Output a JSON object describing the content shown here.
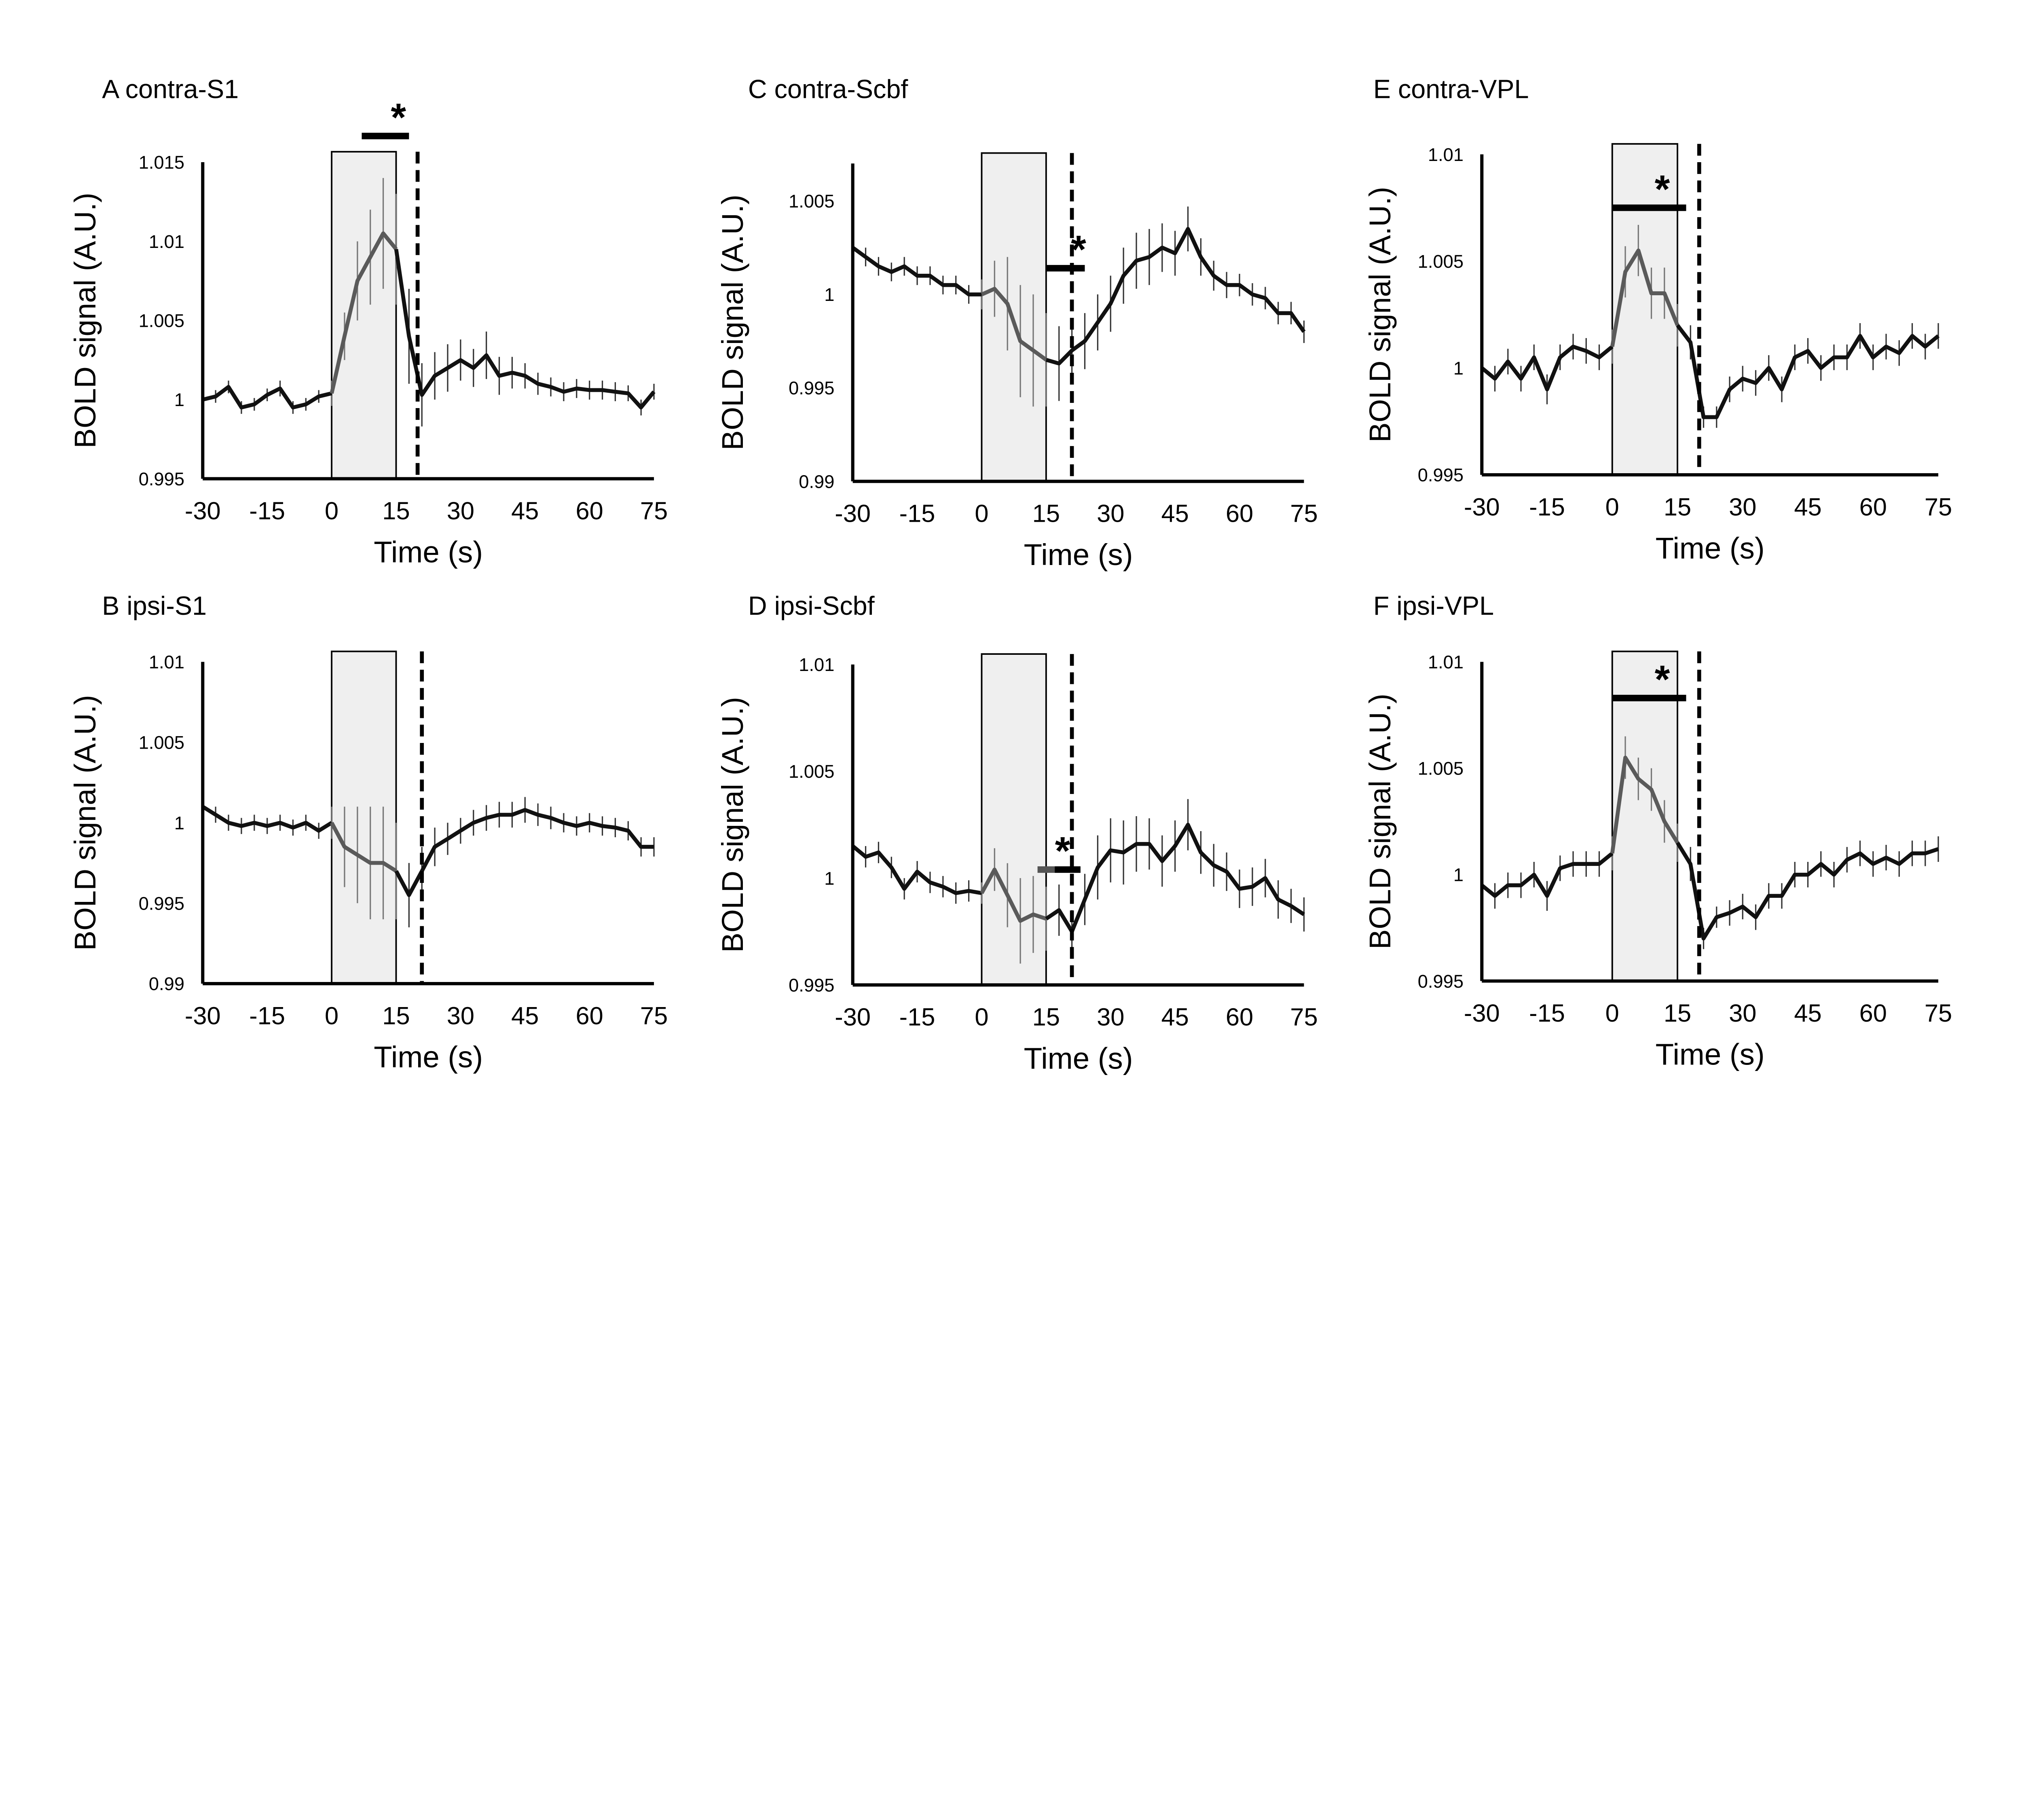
{
  "chart_data": [
    {
      "type": "line",
      "panel": "A",
      "title": "A contra-S1",
      "xlabel": "Time (s)",
      "ylabel": "BOLD signal (A.U.)",
      "xlim": [
        -30,
        75
      ],
      "ylim": [
        0.995,
        1.015
      ],
      "xticks": [
        "-30",
        "-15",
        "0",
        "15",
        "30",
        "45",
        "60",
        "75"
      ],
      "yticks": [
        "0.995",
        "1",
        "1.005",
        "1.01",
        "1.015"
      ],
      "stimulus_window": [
        0,
        15
      ],
      "dashed_line_x": 20,
      "significance": {
        "segments": [
          {
            "from": 7,
            "to": 18,
            "color": "#000000"
          }
        ],
        "y": "above",
        "label": "*"
      },
      "x": [
        -30,
        -27,
        -24,
        -21,
        -18,
        -15,
        -12,
        -9,
        -6,
        -3,
        0,
        3,
        6,
        9,
        12,
        15,
        18,
        21,
        24,
        27,
        30,
        33,
        36,
        39,
        42,
        45,
        48,
        51,
        54,
        57,
        60,
        63,
        66,
        69,
        72,
        75
      ],
      "y": [
        1.0,
        1.0002,
        1.0008,
        0.9995,
        0.9997,
        1.0003,
        1.0007,
        0.9995,
        0.9997,
        1.0002,
        1.0004,
        1.004,
        1.0075,
        1.009,
        1.0105,
        1.0095,
        1.004,
        1.0003,
        1.0015,
        1.002,
        1.0025,
        1.002,
        1.0028,
        1.0015,
        1.0017,
        1.0015,
        1.001,
        1.0008,
        1.0005,
        1.0007,
        1.0006,
        1.0006,
        1.0005,
        1.0004,
        0.9995,
        1.0005
      ],
      "error": [
        0.0004,
        0.0004,
        0.0004,
        0.0004,
        0.0004,
        0.0004,
        0.0005,
        0.0004,
        0.0004,
        0.0004,
        0.0008,
        0.0015,
        0.0025,
        0.003,
        0.0035,
        0.0035,
        0.003,
        0.002,
        0.0015,
        0.0015,
        0.0013,
        0.0012,
        0.0015,
        0.0012,
        0.001,
        0.0008,
        0.0007,
        0.0006,
        0.0006,
        0.0006,
        0.0006,
        0.0006,
        0.0006,
        0.0005,
        0.0005,
        0.0005
      ]
    },
    {
      "type": "line",
      "panel": "B",
      "title": "B ipsi-S1",
      "xlabel": "Time (s)",
      "ylabel": "BOLD signal (A.U.)",
      "xlim": [
        -30,
        75
      ],
      "ylim": [
        0.99,
        1.01
      ],
      "xticks": [
        "-30",
        "-15",
        "0",
        "15",
        "30",
        "45",
        "60",
        "75"
      ],
      "yticks": [
        "0.99",
        "0.995",
        "1",
        "1.005",
        "1.01"
      ],
      "stimulus_window": [
        0,
        15
      ],
      "dashed_line_x": 21,
      "significance": null,
      "x": [
        -30,
        -27,
        -24,
        -21,
        -18,
        -15,
        -12,
        -9,
        -6,
        -3,
        0,
        3,
        6,
        9,
        12,
        15,
        18,
        21,
        24,
        27,
        30,
        33,
        36,
        39,
        42,
        45,
        48,
        51,
        54,
        57,
        60,
        63,
        66,
        69,
        72,
        75
      ],
      "y": [
        1.001,
        1.0005,
        1.0,
        0.9998,
        1.0,
        0.9998,
        1.0,
        0.9997,
        1.0,
        0.9995,
        1.0,
        0.9985,
        0.998,
        0.9975,
        0.9975,
        0.997,
        0.9955,
        0.997,
        0.9985,
        0.999,
        0.9995,
        1.0,
        1.0003,
        1.0005,
        1.0005,
        1.0008,
        1.0005,
        1.0003,
        1.0,
        0.9998,
        1.0,
        0.9998,
        0.9997,
        0.9995,
        0.9985,
        0.9985
      ],
      "error": [
        0.0006,
        0.0005,
        0.0005,
        0.0005,
        0.0005,
        0.0005,
        0.0005,
        0.0005,
        0.0005,
        0.0005,
        0.001,
        0.0025,
        0.003,
        0.0035,
        0.0035,
        0.003,
        0.002,
        0.0015,
        0.0012,
        0.001,
        0.0008,
        0.0008,
        0.0008,
        0.0008,
        0.0008,
        0.0008,
        0.0007,
        0.0007,
        0.0006,
        0.0006,
        0.0006,
        0.0006,
        0.0006,
        0.0006,
        0.0006,
        0.0006
      ]
    },
    {
      "type": "line",
      "panel": "C",
      "title": "C contra-Scbf",
      "xlabel": "Time (s)",
      "ylabel": "BOLD signal (A.U.)",
      "xlim": [
        -30,
        75
      ],
      "ylim": [
        0.99,
        1.007
      ],
      "xticks": [
        "-30",
        "-15",
        "0",
        "15",
        "30",
        "45",
        "60",
        "75"
      ],
      "yticks": [
        "0.99",
        "0.995",
        "1",
        "1.005"
      ],
      "stimulus_window": [
        0,
        15
      ],
      "dashed_line_x": 21,
      "significance": {
        "segments": [
          {
            "from": 15,
            "to": 24,
            "color": "#000000"
          }
        ],
        "y": 1.0014,
        "label": "*"
      },
      "x": [
        -30,
        -27,
        -24,
        -21,
        -18,
        -15,
        -12,
        -9,
        -6,
        -3,
        0,
        3,
        6,
        9,
        12,
        15,
        18,
        21,
        24,
        27,
        30,
        33,
        36,
        39,
        42,
        45,
        48,
        51,
        54,
        57,
        60,
        63,
        66,
        69,
        72,
        75
      ],
      "y": [
        1.0025,
        1.002,
        1.0015,
        1.0012,
        1.0015,
        1.001,
        1.001,
        1.0005,
        1.0005,
        1.0,
        1.0,
        1.0003,
        0.9995,
        0.9975,
        0.997,
        0.9965,
        0.9963,
        0.997,
        0.9975,
        0.9985,
        0.9995,
        1.001,
        1.0018,
        1.002,
        1.0025,
        1.0022,
        1.0035,
        1.002,
        1.001,
        1.0005,
        1.0005,
        1.0,
        0.9998,
        0.999,
        0.999,
        0.998
      ],
      "error": [
        0.0005,
        0.0005,
        0.0005,
        0.0005,
        0.0005,
        0.0005,
        0.0005,
        0.0005,
        0.0005,
        0.0005,
        0.0008,
        0.0015,
        0.0025,
        0.003,
        0.003,
        0.0025,
        0.002,
        0.0015,
        0.0015,
        0.0015,
        0.0015,
        0.0015,
        0.0015,
        0.0015,
        0.0013,
        0.0012,
        0.0012,
        0.001,
        0.0008,
        0.0007,
        0.0006,
        0.0006,
        0.0006,
        0.0006,
        0.0006,
        0.0006
      ]
    },
    {
      "type": "line",
      "panel": "D",
      "title": "D ipsi-Scbf",
      "xlabel": "Time (s)",
      "ylabel": "BOLD signal (A.U.)",
      "xlim": [
        -30,
        75
      ],
      "ylim": [
        0.995,
        1.01
      ],
      "xticks": [
        "-30",
        "-15",
        "0",
        "15",
        "30",
        "45",
        "60",
        "75"
      ],
      "yticks": [
        "0.995",
        "1",
        "1.005",
        "1.01"
      ],
      "stimulus_window": [
        0,
        15
      ],
      "dashed_line_x": 21,
      "significance": {
        "segments": [
          {
            "from": 13,
            "to": 17,
            "color": "#555555"
          },
          {
            "from": 17,
            "to": 23,
            "color": "#000000"
          }
        ],
        "y": 1.0004,
        "label": "*"
      },
      "x": [
        -30,
        -27,
        -24,
        -21,
        -18,
        -15,
        -12,
        -9,
        -6,
        -3,
        0,
        3,
        6,
        9,
        12,
        15,
        18,
        21,
        24,
        27,
        30,
        33,
        36,
        39,
        42,
        45,
        48,
        51,
        54,
        57,
        60,
        63,
        66,
        69,
        72,
        75
      ],
      "y": [
        1.0015,
        1.001,
        1.0012,
        1.0005,
        0.9995,
        1.0003,
        0.9998,
        0.9996,
        0.9993,
        0.9994,
        0.9993,
        1.0004,
        0.9992,
        0.998,
        0.9983,
        0.9981,
        0.9985,
        0.9975,
        0.999,
        1.0005,
        1.0013,
        1.0012,
        1.0016,
        1.0016,
        1.0008,
        1.0015,
        1.0025,
        1.0012,
        1.0006,
        1.0003,
        0.9995,
        0.9996,
        1.0,
        0.999,
        0.9987,
        0.9983
      ],
      "error": [
        0.0006,
        0.0005,
        0.0005,
        0.0005,
        0.0005,
        0.0005,
        0.0005,
        0.0005,
        0.0005,
        0.0005,
        0.0005,
        0.001,
        0.0015,
        0.002,
        0.0018,
        0.0015,
        0.0012,
        0.001,
        0.0012,
        0.0015,
        0.0015,
        0.0015,
        0.0013,
        0.0012,
        0.0012,
        0.0012,
        0.0012,
        0.001,
        0.001,
        0.0009,
        0.0009,
        0.0009,
        0.0009,
        0.0009,
        0.0008,
        0.0008
      ]
    },
    {
      "type": "line",
      "panel": "E",
      "title": "E contra-VPL",
      "xlabel": "Time (s)",
      "ylabel": "BOLD signal (A.U.)",
      "xlim": [
        -30,
        75
      ],
      "ylim": [
        0.995,
        1.01
      ],
      "xticks": [
        "-30",
        "-15",
        "0",
        "15",
        "30",
        "45",
        "60",
        "75"
      ],
      "yticks": [
        "0.995",
        "1",
        "1.005",
        "1.01"
      ],
      "stimulus_window": [
        0,
        15
      ],
      "dashed_line_x": 20,
      "significance": {
        "segments": [
          {
            "from": 0,
            "to": 17,
            "color": "#000000"
          }
        ],
        "y": 1.0075,
        "label": "*"
      },
      "x": [
        -30,
        -27,
        -24,
        -21,
        -18,
        -15,
        -12,
        -9,
        -6,
        -3,
        0,
        3,
        6,
        9,
        12,
        15,
        18,
        21,
        24,
        27,
        30,
        33,
        36,
        39,
        42,
        45,
        48,
        51,
        54,
        57,
        60,
        63,
        66,
        69,
        72,
        75
      ],
      "y": [
        1.0,
        0.9995,
        1.0003,
        0.9995,
        1.0005,
        0.999,
        1.0005,
        1.001,
        1.0008,
        1.0005,
        1.001,
        1.0045,
        1.0055,
        1.0035,
        1.0035,
        1.002,
        1.0012,
        0.9977,
        0.9977,
        0.999,
        0.9995,
        0.9993,
        1.0,
        0.999,
        1.0005,
        1.0008,
        1.0,
        1.0005,
        1.0005,
        1.0015,
        1.0005,
        1.001,
        1.0007,
        1.0015,
        1.001,
        1.0015
      ],
      "error": [
        0.0005,
        0.0006,
        0.0006,
        0.0006,
        0.0006,
        0.0007,
        0.0006,
        0.0006,
        0.0006,
        0.0006,
        0.0008,
        0.0012,
        0.0012,
        0.0012,
        0.0012,
        0.001,
        0.0008,
        0.0005,
        0.0005,
        0.0006,
        0.0006,
        0.0006,
        0.0006,
        0.0006,
        0.0006,
        0.0006,
        0.0006,
        0.0006,
        0.0006,
        0.0006,
        0.0006,
        0.0006,
        0.0006,
        0.0006,
        0.0006,
        0.0006
      ]
    },
    {
      "type": "line",
      "panel": "F",
      "title": "F ipsi-VPL",
      "xlabel": "Time (s)",
      "ylabel": "BOLD signal (A.U.)",
      "xlim": [
        -30,
        75
      ],
      "ylim": [
        0.995,
        1.01
      ],
      "xticks": [
        "-30",
        "-15",
        "0",
        "15",
        "30",
        "45",
        "60",
        "75"
      ],
      "yticks": [
        "0.995",
        "1",
        "1.005",
        "1.01"
      ],
      "stimulus_window": [
        0,
        15
      ],
      "dashed_line_x": 20,
      "significance": {
        "segments": [
          {
            "from": 0,
            "to": 17,
            "color": "#000000"
          }
        ],
        "y": 1.0083,
        "label": "*"
      },
      "x": [
        -30,
        -27,
        -24,
        -21,
        -18,
        -15,
        -12,
        -9,
        -6,
        -3,
        0,
        3,
        6,
        9,
        12,
        15,
        18,
        21,
        24,
        27,
        30,
        33,
        36,
        39,
        42,
        45,
        48,
        51,
        54,
        57,
        60,
        63,
        66,
        69,
        72,
        75
      ],
      "y": [
        0.9995,
        0.999,
        0.9995,
        0.9995,
        1.0,
        0.999,
        1.0003,
        1.0005,
        1.0005,
        1.0005,
        1.001,
        1.0055,
        1.0045,
        1.004,
        1.0025,
        1.0015,
        1.0005,
        0.997,
        0.998,
        0.9982,
        0.9985,
        0.998,
        0.999,
        0.999,
        1.0,
        1.0,
        1.0005,
        1.0,
        1.0007,
        1.001,
        1.0005,
        1.0008,
        1.0005,
        1.001,
        1.001,
        1.0012
      ],
      "error": [
        0.0005,
        0.0006,
        0.0006,
        0.0006,
        0.0006,
        0.0007,
        0.0006,
        0.0006,
        0.0006,
        0.0006,
        0.0008,
        0.001,
        0.001,
        0.001,
        0.001,
        0.0009,
        0.0008,
        0.0005,
        0.0005,
        0.0006,
        0.0006,
        0.0006,
        0.0006,
        0.0006,
        0.0006,
        0.0006,
        0.0006,
        0.0006,
        0.0006,
        0.0006,
        0.0006,
        0.0006,
        0.0006,
        0.0006,
        0.0006,
        0.0006
      ]
    }
  ]
}
